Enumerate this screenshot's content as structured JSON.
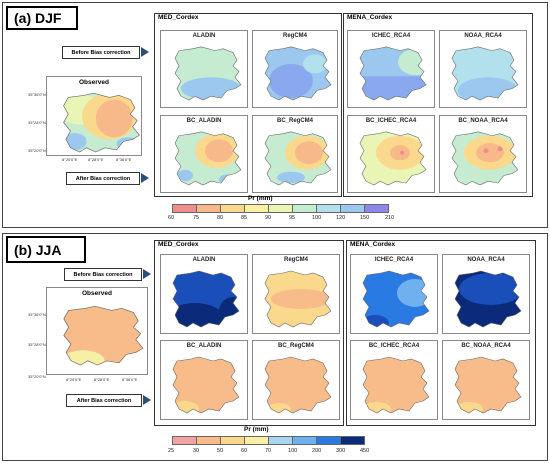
{
  "panels": [
    {
      "label": "(a) DJF",
      "observed_title": "Observed",
      "before_label": "Before Bias correction",
      "after_label": "After Bias correction",
      "yticks": [
        "35°36'0\"N",
        "35°28'0\"N",
        "35°20'0\"N"
      ],
      "xticks": [
        "8°20'0\"E",
        "8°28'0\"E",
        "8°36'0\"E"
      ],
      "med_title": "MED_Cordex",
      "mena_title": "MENA_Cordex",
      "maps_top": [
        "ALADIN",
        "RegCM4",
        "ICHEC_RCA4",
        "NOAA_RCA4"
      ],
      "maps_bottom": [
        "BC_ALADIN",
        "BC_RegCM4",
        "BC_ICHEC_RCA4",
        "BC_NOAA_RCA4"
      ],
      "legend_title": "Pr (mm)",
      "legend_labels": [
        "60",
        "75",
        "80",
        "85",
        "90",
        "95",
        "100",
        "120",
        "150",
        "210"
      ],
      "legend_colors": [
        "#f08c8c",
        "#f7b98a",
        "#fbd98c",
        "#fbf0a0",
        "#e8f5b5",
        "#c5ecd0",
        "#b2e0ec",
        "#9cc8f0",
        "#8aa8ee",
        "#8e86e8"
      ]
    },
    {
      "label": "(b) JJA",
      "observed_title": "Observed",
      "before_label": "Before Bias correction",
      "after_label": "After Bias correction",
      "yticks": [
        "35°36'0\"N",
        "35°28'0\"N",
        "35°20'0\"N"
      ],
      "xticks": [
        "8°20'0\"E",
        "8°28'0\"E",
        "8°36'0\"E"
      ],
      "med_title": "MED_Cordex",
      "mena_title": "MENA_Cordex",
      "maps_top": [
        "ALADIN",
        "RegCM4",
        "ICHEC_RCA4",
        "NOAA_RCA4"
      ],
      "maps_bottom": [
        "BC_ALADIN",
        "BC_RegCM4",
        "BC_ICHEC_RCA4",
        "BC_NOAA_RCA4"
      ],
      "legend_title": "Pr (mm)",
      "legend_labels": [
        "25",
        "30",
        "50",
        "60",
        "70",
        "100",
        "200",
        "300",
        "450"
      ],
      "legend_colors": [
        "#f4a3a3",
        "#f7bc8a",
        "#fbd98c",
        "#f7f0a4",
        "#a8d4f0",
        "#6fb0ee",
        "#2a7ae4",
        "#1a4eb8",
        "#0c2a7a"
      ]
    }
  ]
}
